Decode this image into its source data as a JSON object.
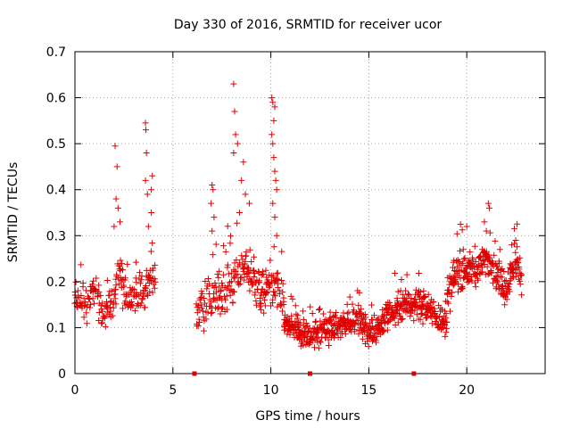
{
  "chart_data": {
    "type": "scatter",
    "title": "Day 330 of 2016, SRMTID for receiver ucor",
    "xlabel": "GPS time / hours",
    "ylabel": "SRMTID / TECUs",
    "xlim": [
      0,
      24
    ],
    "ylim": [
      0,
      0.7
    ],
    "xticks": [
      0,
      5,
      10,
      15,
      20
    ],
    "yticks": [
      0,
      0.1,
      0.2,
      0.3,
      0.4,
      0.5,
      0.6,
      0.7
    ],
    "xtick_labels": [
      "0",
      "5",
      "10",
      "15",
      "20"
    ],
    "ytick_labels": [
      "0",
      "0.1",
      "0.2",
      "0.3",
      "0.4",
      "0.5",
      "0.6",
      "0.7"
    ],
    "grid": true,
    "color": "#e00000",
    "marker": "plus",
    "zero_markers": [
      6.1,
      12.0,
      17.3
    ],
    "segments": [
      {
        "start": 0.0,
        "end": 4.1,
        "step": 0.05,
        "profile": [
          [
            0.0,
            0.16
          ],
          [
            0.5,
            0.15
          ],
          [
            1.0,
            0.17
          ],
          [
            1.5,
            0.14
          ],
          [
            2.0,
            0.17
          ],
          [
            2.3,
            0.22
          ],
          [
            2.6,
            0.16
          ],
          [
            3.0,
            0.17
          ],
          [
            3.5,
            0.17
          ],
          [
            3.8,
            0.22
          ],
          [
            4.1,
            0.2
          ]
        ],
        "spread": 0.06
      },
      {
        "start": 6.2,
        "end": 10.7,
        "step": 0.045,
        "profile": [
          [
            6.2,
            0.14
          ],
          [
            6.8,
            0.16
          ],
          [
            7.5,
            0.18
          ],
          [
            8.0,
            0.2
          ],
          [
            8.5,
            0.23
          ],
          [
            9.0,
            0.22
          ],
          [
            9.5,
            0.18
          ],
          [
            10.0,
            0.19
          ],
          [
            10.4,
            0.18
          ],
          [
            10.7,
            0.13
          ]
        ],
        "spread": 0.07
      },
      {
        "start": 10.7,
        "end": 19.0,
        "step": 0.035,
        "profile": [
          [
            10.7,
            0.11
          ],
          [
            11.5,
            0.09
          ],
          [
            12.0,
            0.08
          ],
          [
            13.0,
            0.1
          ],
          [
            14.0,
            0.11
          ],
          [
            14.5,
            0.12
          ],
          [
            15.0,
            0.09
          ],
          [
            15.5,
            0.1
          ],
          [
            16.0,
            0.13
          ],
          [
            16.5,
            0.14
          ],
          [
            17.0,
            0.15
          ],
          [
            17.5,
            0.15
          ],
          [
            18.0,
            0.14
          ],
          [
            18.5,
            0.12
          ],
          [
            19.0,
            0.11
          ]
        ],
        "spread": 0.045
      },
      {
        "start": 19.0,
        "end": 22.8,
        "step": 0.035,
        "profile": [
          [
            19.0,
            0.16
          ],
          [
            19.5,
            0.22
          ],
          [
            20.0,
            0.23
          ],
          [
            20.5,
            0.22
          ],
          [
            21.0,
            0.25
          ],
          [
            21.5,
            0.22
          ],
          [
            22.0,
            0.19
          ],
          [
            22.5,
            0.24
          ],
          [
            22.8,
            0.22
          ]
        ],
        "spread": 0.055
      }
    ],
    "spikes": [
      {
        "x": 2.05,
        "y": 0.495
      },
      {
        "x": 2.15,
        "y": 0.45
      },
      {
        "x": 2.1,
        "y": 0.38
      },
      {
        "x": 2.2,
        "y": 0.36
      },
      {
        "x": 2.3,
        "y": 0.33
      },
      {
        "x": 2.0,
        "y": 0.32
      },
      {
        "x": 3.6,
        "y": 0.545
      },
      {
        "x": 3.62,
        "y": 0.53
      },
      {
        "x": 3.65,
        "y": 0.48
      },
      {
        "x": 3.6,
        "y": 0.42
      },
      {
        "x": 3.7,
        "y": 0.39
      },
      {
        "x": 3.75,
        "y": 0.32
      },
      {
        "x": 3.95,
        "y": 0.43
      },
      {
        "x": 3.9,
        "y": 0.4
      },
      {
        "x": 3.9,
        "y": 0.35
      },
      {
        "x": 7.0,
        "y": 0.41
      },
      {
        "x": 7.05,
        "y": 0.4
      },
      {
        "x": 6.95,
        "y": 0.37
      },
      {
        "x": 7.1,
        "y": 0.34
      },
      {
        "x": 7.0,
        "y": 0.31
      },
      {
        "x": 8.1,
        "y": 0.63
      },
      {
        "x": 8.15,
        "y": 0.57
      },
      {
        "x": 8.2,
        "y": 0.52
      },
      {
        "x": 8.3,
        "y": 0.5
      },
      {
        "x": 8.1,
        "y": 0.48
      },
      {
        "x": 8.6,
        "y": 0.46
      },
      {
        "x": 8.5,
        "y": 0.42
      },
      {
        "x": 8.7,
        "y": 0.39
      },
      {
        "x": 8.9,
        "y": 0.37
      },
      {
        "x": 8.4,
        "y": 0.35
      },
      {
        "x": 10.05,
        "y": 0.6
      },
      {
        "x": 10.1,
        "y": 0.59
      },
      {
        "x": 10.2,
        "y": 0.58
      },
      {
        "x": 10.15,
        "y": 0.55
      },
      {
        "x": 10.05,
        "y": 0.52
      },
      {
        "x": 10.1,
        "y": 0.5
      },
      {
        "x": 10.15,
        "y": 0.47
      },
      {
        "x": 10.2,
        "y": 0.44
      },
      {
        "x": 10.25,
        "y": 0.42
      },
      {
        "x": 10.3,
        "y": 0.4
      },
      {
        "x": 10.1,
        "y": 0.37
      },
      {
        "x": 10.2,
        "y": 0.34
      },
      {
        "x": 10.3,
        "y": 0.3
      },
      {
        "x": 21.1,
        "y": 0.37
      },
      {
        "x": 21.15,
        "y": 0.36
      },
      {
        "x": 20.9,
        "y": 0.33
      },
      {
        "x": 21.0,
        "y": 0.31
      },
      {
        "x": 20.0,
        "y": 0.32
      },
      {
        "x": 22.5,
        "y": 0.29
      },
      {
        "x": 22.3,
        "y": 0.28
      }
    ]
  }
}
